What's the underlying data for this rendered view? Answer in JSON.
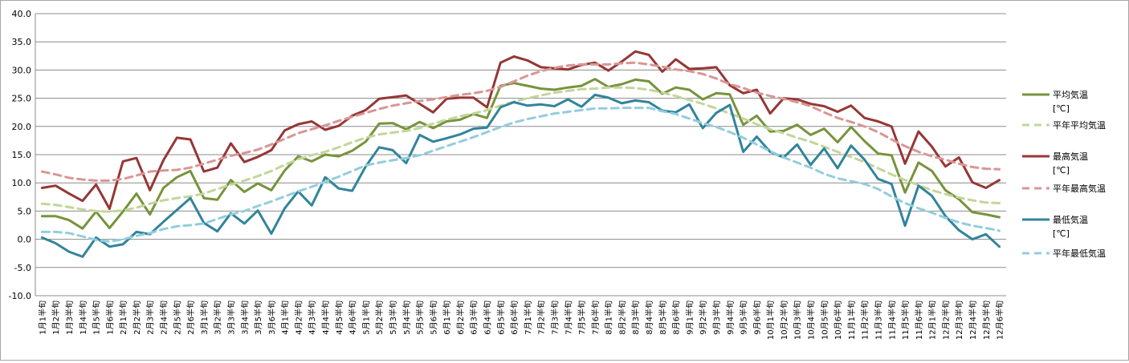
{
  "chart_data": {
    "type": "line",
    "title": "",
    "xlabel": "",
    "ylabel": "",
    "ylim": [
      -10,
      40
    ],
    "ytick_step": 5,
    "grid": true,
    "legend_position": "right",
    "x": [
      "1月1半旬",
      "1月2半旬",
      "1月3半旬",
      "1月4半旬",
      "1月5半旬",
      "1月6半旬",
      "2月1半旬",
      "2月2半旬",
      "2月3半旬",
      "2月4半旬",
      "2月5半旬",
      "2月6半旬",
      "3月1半旬",
      "3月2半旬",
      "3月3半旬",
      "3月4半旬",
      "3月5半旬",
      "3月6半旬",
      "4月1半旬",
      "4月2半旬",
      "4月3半旬",
      "4月4半旬",
      "4月5半旬",
      "4月6半旬",
      "5月1半旬",
      "5月2半旬",
      "5月3半旬",
      "5月4半旬",
      "5月5半旬",
      "5月6半旬",
      "6月1半旬",
      "6月2半旬",
      "6月3半旬",
      "6月4半旬",
      "6月5半旬",
      "6月6半旬",
      "7月1半旬",
      "7月2半旬",
      "7月3半旬",
      "7月4半旬",
      "7月5半旬",
      "7月6半旬",
      "8月1半旬",
      "8月2半旬",
      "8月3半旬",
      "8月4半旬",
      "8月5半旬",
      "8月6半旬",
      "9月1半旬",
      "9月2半旬",
      "9月3半旬",
      "9月4半旬",
      "9月5半旬",
      "9月6半旬",
      "10月1半旬",
      "10月2半旬",
      "10月3半旬",
      "10月4半旬",
      "10月5半旬",
      "10月6半旬",
      "11月1半旬",
      "11月2半旬",
      "11月3半旬",
      "11月4半旬",
      "11月5半旬",
      "11月6半旬",
      "12月1半旬",
      "12月2半旬",
      "12月3半旬",
      "12月4半旬",
      "12月5半旬",
      "12月6半旬"
    ],
    "series": [
      {
        "name": "平均気温",
        "unit": "[℃]",
        "color": "#77933c",
        "dashed": false,
        "values": [
          4.1,
          4.1,
          3.4,
          1.9,
          4.9,
          2.0,
          4.9,
          8.1,
          4.4,
          9.1,
          11.0,
          12.1,
          7.3,
          7.0,
          10.5,
          8.4,
          9.9,
          8.7,
          12.2,
          14.7,
          13.8,
          15.0,
          14.7,
          15.7,
          17.3,
          20.5,
          20.6,
          19.5,
          20.8,
          19.7,
          20.9,
          21.2,
          22.2,
          21.5,
          27.2,
          27.7,
          27.2,
          26.7,
          26.5,
          26.9,
          27.2,
          28.4,
          27.0,
          27.5,
          28.3,
          28.0,
          25.8,
          26.9,
          26.5,
          24.8,
          25.9,
          25.7,
          20.3,
          21.9,
          19.1,
          19.2,
          20.3,
          18.5,
          19.6,
          17.2,
          19.9,
          17.4,
          15.2,
          14.9,
          8.3,
          13.6,
          12.1,
          8.7,
          7.1,
          4.8,
          4.4,
          3.9
        ]
      },
      {
        "name": "平年平均気温",
        "unit": "",
        "color": "#c3d69b",
        "dashed": true,
        "values": [
          6.3,
          6.1,
          5.7,
          5.3,
          5.0,
          4.9,
          5.1,
          5.6,
          6.3,
          6.9,
          7.3,
          7.6,
          8.1,
          8.9,
          9.7,
          10.4,
          11.2,
          12.1,
          13.2,
          14.2,
          14.9,
          15.5,
          16.3,
          17.2,
          18.0,
          18.6,
          18.9,
          19.2,
          19.7,
          20.5,
          21.2,
          21.8,
          22.3,
          22.9,
          23.7,
          24.4,
          25.0,
          25.5,
          26.0,
          26.3,
          26.6,
          26.7,
          26.9,
          26.9,
          26.8,
          26.5,
          26.0,
          25.4,
          24.7,
          24.0,
          23.2,
          22.3,
          21.4,
          20.4,
          19.5,
          18.8,
          18.0,
          17.3,
          16.4,
          15.5,
          14.6,
          13.7,
          12.6,
          11.5,
          10.5,
          9.6,
          8.7,
          8.0,
          7.4,
          6.9,
          6.5,
          6.4
        ]
      },
      {
        "name": "最高気温",
        "unit": "[℃]",
        "color": "#953735",
        "dashed": false,
        "values": [
          9.1,
          9.5,
          8.1,
          6.8,
          9.7,
          5.4,
          13.8,
          14.4,
          8.7,
          14.0,
          18.0,
          17.7,
          12.0,
          12.7,
          17.0,
          13.7,
          14.6,
          15.8,
          19.3,
          20.4,
          20.9,
          19.4,
          20.1,
          21.9,
          22.9,
          24.9,
          25.2,
          25.5,
          24.0,
          22.5,
          24.9,
          25.1,
          25.1,
          23.4,
          31.3,
          32.4,
          31.7,
          30.5,
          30.3,
          30.1,
          30.9,
          31.3,
          29.9,
          31.5,
          33.3,
          32.7,
          29.7,
          31.9,
          30.2,
          30.3,
          30.5,
          27.3,
          25.9,
          26.5,
          22.3,
          25.0,
          24.8,
          24.0,
          23.6,
          22.6,
          23.7,
          21.5,
          20.9,
          20.0,
          13.4,
          19.1,
          16.4,
          12.9,
          14.5,
          10.1,
          9.1,
          10.5
        ]
      },
      {
        "name": "平年最高気温",
        "unit": "",
        "color": "#d99694",
        "dashed": true,
        "values": [
          12.0,
          11.5,
          10.9,
          10.6,
          10.4,
          10.4,
          10.7,
          11.3,
          12.0,
          12.2,
          12.3,
          12.7,
          13.4,
          14.1,
          14.8,
          15.3,
          15.9,
          16.8,
          17.8,
          18.8,
          19.5,
          20.2,
          21.0,
          21.7,
          22.4,
          23.1,
          23.7,
          24.1,
          24.5,
          24.8,
          25.2,
          25.6,
          25.9,
          26.3,
          27.0,
          28.0,
          29.0,
          29.8,
          30.4,
          30.8,
          31.0,
          31.0,
          31.0,
          31.2,
          31.3,
          31.0,
          30.6,
          30.1,
          29.8,
          29.3,
          28.5,
          27.5,
          26.8,
          26.0,
          25.4,
          24.9,
          24.3,
          23.6,
          22.5,
          21.5,
          20.8,
          20.0,
          19.0,
          17.7,
          16.5,
          15.5,
          14.7,
          14.1,
          13.4,
          12.8,
          12.5,
          12.4
        ]
      },
      {
        "name": "最低気温",
        "unit": "[℃]",
        "color": "#31849b",
        "dashed": false,
        "values": [
          0.3,
          -0.7,
          -2.2,
          -3.1,
          0.3,
          -1.3,
          -0.9,
          1.3,
          0.9,
          3.1,
          5.2,
          7.3,
          2.9,
          1.4,
          4.6,
          2.8,
          5.1,
          1.0,
          5.5,
          8.5,
          6.0,
          11.0,
          9.0,
          8.6,
          12.9,
          16.3,
          15.8,
          13.5,
          18.5,
          17.3,
          17.9,
          18.6,
          19.6,
          19.8,
          23.4,
          24.3,
          23.7,
          23.9,
          23.6,
          24.8,
          23.5,
          25.6,
          25.1,
          24.1,
          24.6,
          24.3,
          22.8,
          22.5,
          23.9,
          19.7,
          22.4,
          23.8,
          15.5,
          18.2,
          15.5,
          14.5,
          16.8,
          13.2,
          16.1,
          12.6,
          16.6,
          14.1,
          10.7,
          9.8,
          2.4,
          9.5,
          7.7,
          4.1,
          1.6,
          0.0,
          0.9,
          -1.3
        ]
      },
      {
        "name": "平年最低気温",
        "unit": "",
        "color": "#93cddd",
        "dashed": true,
        "values": [
          1.3,
          1.3,
          1.1,
          0.5,
          -0.1,
          -0.4,
          0.0,
          0.6,
          1.1,
          1.8,
          2.3,
          2.5,
          2.8,
          3.6,
          4.4,
          5.0,
          5.9,
          6.7,
          7.6,
          8.5,
          9.3,
          10.2,
          11.1,
          12.1,
          13.1,
          13.6,
          14.0,
          14.4,
          14.9,
          15.7,
          16.5,
          17.3,
          18.1,
          19.0,
          19.9,
          20.7,
          21.3,
          21.8,
          22.3,
          22.6,
          22.9,
          23.2,
          23.2,
          23.3,
          23.3,
          23.3,
          22.7,
          22.2,
          21.4,
          20.6,
          19.9,
          19.0,
          18.0,
          16.8,
          15.6,
          14.5,
          13.6,
          12.7,
          11.6,
          10.8,
          10.3,
          9.8,
          8.9,
          7.6,
          6.4,
          5.5,
          4.7,
          3.8,
          3.0,
          2.4,
          2.0,
          1.5
        ]
      }
    ]
  }
}
